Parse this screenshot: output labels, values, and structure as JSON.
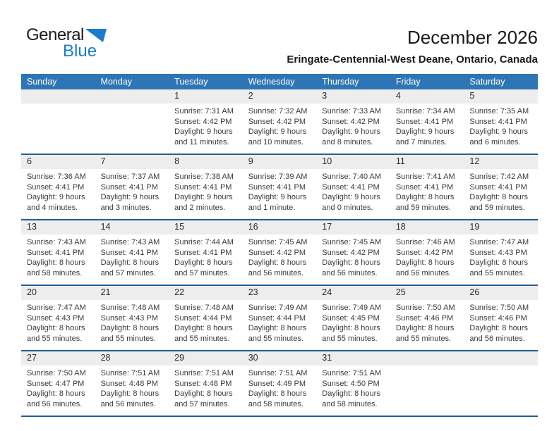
{
  "logo": {
    "general": "General",
    "blue": "Blue"
  },
  "header": {
    "title": "December 2026",
    "subtitle": "Eringate-Centennial-West Deane, Ontario, Canada"
  },
  "colors": {
    "header_bg": "#2E75B6",
    "week_line": "#215E96",
    "number_strip_bg": "#EDEDED",
    "logo_blue": "#1B7CCE"
  },
  "weekdays": [
    "Sunday",
    "Monday",
    "Tuesday",
    "Wednesday",
    "Thursday",
    "Friday",
    "Saturday"
  ],
  "weeks": [
    [
      {
        "day": "",
        "lines": []
      },
      {
        "day": "",
        "lines": []
      },
      {
        "day": "1",
        "lines": [
          "Sunrise: 7:31 AM",
          "Sunset: 4:42 PM",
          "Daylight: 9 hours and 11 minutes."
        ]
      },
      {
        "day": "2",
        "lines": [
          "Sunrise: 7:32 AM",
          "Sunset: 4:42 PM",
          "Daylight: 9 hours and 10 minutes."
        ]
      },
      {
        "day": "3",
        "lines": [
          "Sunrise: 7:33 AM",
          "Sunset: 4:42 PM",
          "Daylight: 9 hours and 8 minutes."
        ]
      },
      {
        "day": "4",
        "lines": [
          "Sunrise: 7:34 AM",
          "Sunset: 4:41 PM",
          "Daylight: 9 hours and 7 minutes."
        ]
      },
      {
        "day": "5",
        "lines": [
          "Sunrise: 7:35 AM",
          "Sunset: 4:41 PM",
          "Daylight: 9 hours and 6 minutes."
        ]
      }
    ],
    [
      {
        "day": "6",
        "lines": [
          "Sunrise: 7:36 AM",
          "Sunset: 4:41 PM",
          "Daylight: 9 hours and 4 minutes."
        ]
      },
      {
        "day": "7",
        "lines": [
          "Sunrise: 7:37 AM",
          "Sunset: 4:41 PM",
          "Daylight: 9 hours and 3 minutes."
        ]
      },
      {
        "day": "8",
        "lines": [
          "Sunrise: 7:38 AM",
          "Sunset: 4:41 PM",
          "Daylight: 9 hours and 2 minutes."
        ]
      },
      {
        "day": "9",
        "lines": [
          "Sunrise: 7:39 AM",
          "Sunset: 4:41 PM",
          "Daylight: 9 hours and 1 minute."
        ]
      },
      {
        "day": "10",
        "lines": [
          "Sunrise: 7:40 AM",
          "Sunset: 4:41 PM",
          "Daylight: 9 hours and 0 minutes."
        ]
      },
      {
        "day": "11",
        "lines": [
          "Sunrise: 7:41 AM",
          "Sunset: 4:41 PM",
          "Daylight: 8 hours and 59 minutes."
        ]
      },
      {
        "day": "12",
        "lines": [
          "Sunrise: 7:42 AM",
          "Sunset: 4:41 PM",
          "Daylight: 8 hours and 59 minutes."
        ]
      }
    ],
    [
      {
        "day": "13",
        "lines": [
          "Sunrise: 7:43 AM",
          "Sunset: 4:41 PM",
          "Daylight: 8 hours and 58 minutes."
        ]
      },
      {
        "day": "14",
        "lines": [
          "Sunrise: 7:43 AM",
          "Sunset: 4:41 PM",
          "Daylight: 8 hours and 57 minutes."
        ]
      },
      {
        "day": "15",
        "lines": [
          "Sunrise: 7:44 AM",
          "Sunset: 4:41 PM",
          "Daylight: 8 hours and 57 minutes."
        ]
      },
      {
        "day": "16",
        "lines": [
          "Sunrise: 7:45 AM",
          "Sunset: 4:42 PM",
          "Daylight: 8 hours and 56 minutes."
        ]
      },
      {
        "day": "17",
        "lines": [
          "Sunrise: 7:45 AM",
          "Sunset: 4:42 PM",
          "Daylight: 8 hours and 56 minutes."
        ]
      },
      {
        "day": "18",
        "lines": [
          "Sunrise: 7:46 AM",
          "Sunset: 4:42 PM",
          "Daylight: 8 hours and 56 minutes."
        ]
      },
      {
        "day": "19",
        "lines": [
          "Sunrise: 7:47 AM",
          "Sunset: 4:43 PM",
          "Daylight: 8 hours and 55 minutes."
        ]
      }
    ],
    [
      {
        "day": "20",
        "lines": [
          "Sunrise: 7:47 AM",
          "Sunset: 4:43 PM",
          "Daylight: 8 hours and 55 minutes."
        ]
      },
      {
        "day": "21",
        "lines": [
          "Sunrise: 7:48 AM",
          "Sunset: 4:43 PM",
          "Daylight: 8 hours and 55 minutes."
        ]
      },
      {
        "day": "22",
        "lines": [
          "Sunrise: 7:48 AM",
          "Sunset: 4:44 PM",
          "Daylight: 8 hours and 55 minutes."
        ]
      },
      {
        "day": "23",
        "lines": [
          "Sunrise: 7:49 AM",
          "Sunset: 4:44 PM",
          "Daylight: 8 hours and 55 minutes."
        ]
      },
      {
        "day": "24",
        "lines": [
          "Sunrise: 7:49 AM",
          "Sunset: 4:45 PM",
          "Daylight: 8 hours and 55 minutes."
        ]
      },
      {
        "day": "25",
        "lines": [
          "Sunrise: 7:50 AM",
          "Sunset: 4:46 PM",
          "Daylight: 8 hours and 55 minutes."
        ]
      },
      {
        "day": "26",
        "lines": [
          "Sunrise: 7:50 AM",
          "Sunset: 4:46 PM",
          "Daylight: 8 hours and 56 minutes."
        ]
      }
    ],
    [
      {
        "day": "27",
        "lines": [
          "Sunrise: 7:50 AM",
          "Sunset: 4:47 PM",
          "Daylight: 8 hours and 56 minutes."
        ]
      },
      {
        "day": "28",
        "lines": [
          "Sunrise: 7:51 AM",
          "Sunset: 4:48 PM",
          "Daylight: 8 hours and 56 minutes."
        ]
      },
      {
        "day": "29",
        "lines": [
          "Sunrise: 7:51 AM",
          "Sunset: 4:48 PM",
          "Daylight: 8 hours and 57 minutes."
        ]
      },
      {
        "day": "30",
        "lines": [
          "Sunrise: 7:51 AM",
          "Sunset: 4:49 PM",
          "Daylight: 8 hours and 58 minutes."
        ]
      },
      {
        "day": "31",
        "lines": [
          "Sunrise: 7:51 AM",
          "Sunset: 4:50 PM",
          "Daylight: 8 hours and 58 minutes."
        ]
      },
      {
        "day": "",
        "lines": []
      },
      {
        "day": "",
        "lines": []
      }
    ]
  ]
}
